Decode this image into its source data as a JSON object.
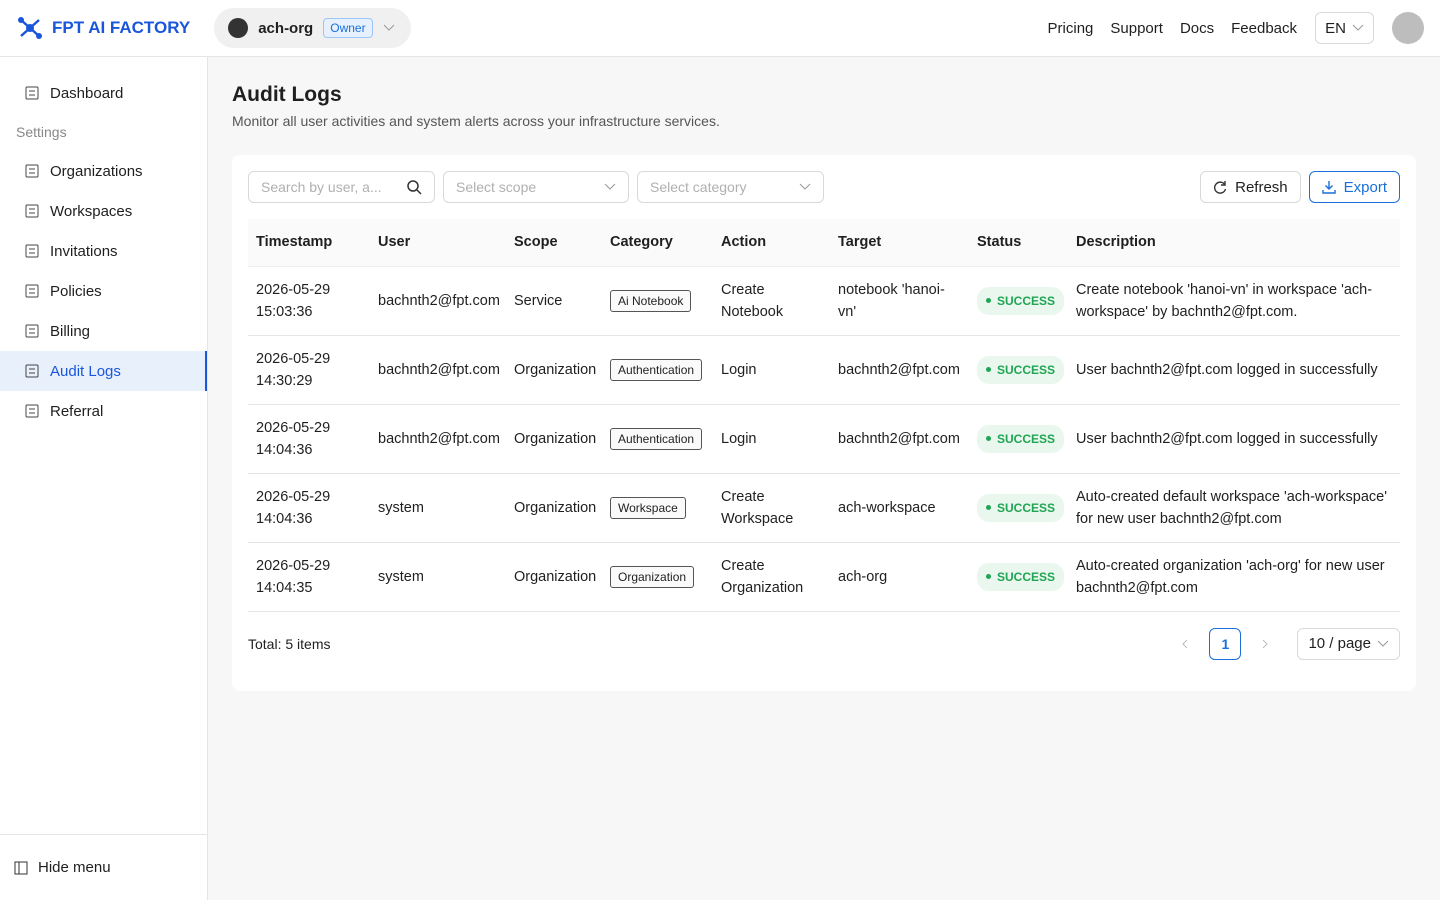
{
  "header": {
    "brand": "FPT AI FACTORY",
    "org": "ach-org",
    "role": "Owner",
    "nav": [
      "Pricing",
      "Support",
      "Docs",
      "Feedback"
    ],
    "language": "EN"
  },
  "sidebar": {
    "top": "Dashboard",
    "section": "Settings",
    "items": [
      "Organizations",
      "Workspaces",
      "Invitations",
      "Policies",
      "Billing",
      "Audit Logs",
      "Referral"
    ],
    "active_index": 5,
    "footer": "Hide menu"
  },
  "main": {
    "title": "Audit Logs",
    "subtitle": "Monitor all user activities and system alerts across your infrastructure services.",
    "filters": {
      "search": "Search by user, a...",
      "scope": "Select scope",
      "category": "Select category"
    },
    "actions": [
      "Refresh",
      "Export"
    ],
    "table": {
      "columns": [
        "Timestamp",
        "User",
        "Scope",
        "Category",
        "Action",
        "Target",
        "Status",
        "Description"
      ],
      "rows": [
        [
          "2026-05-29 15:03:36",
          "bachnth2@fpt.com",
          "Service",
          "Ai Notebook",
          "Create Notebook",
          "notebook 'hanoi-vn'",
          "SUCCESS",
          "Create notebook 'hanoi-vn' in workspace 'ach-workspace' by bachnth2@fpt.com."
        ],
        [
          "2026-05-29 14:30:29",
          "bachnth2@fpt.com",
          "Organization",
          "Authentication",
          "Login",
          "bachnth2@fpt.com",
          "SUCCESS",
          "User bachnth2@fpt.com logged in successfully"
        ],
        [
          "2026-05-29 14:04:36",
          "bachnth2@fpt.com",
          "Organization",
          "Authentication",
          "Login",
          "bachnth2@fpt.com",
          "SUCCESS",
          "User bachnth2@fpt.com logged in successfully"
        ],
        [
          "2026-05-29 14:04:36",
          "system",
          "Organization",
          "Workspace",
          "Create Workspace",
          "ach-workspace",
          "SUCCESS",
          "Auto-created default workspace 'ach-workspace' for new user bachnth2@fpt.com"
        ],
        [
          "2026-05-29 14:04:35",
          "system",
          "Organization",
          "Organization",
          "Create Organization",
          "ach-org",
          "SUCCESS",
          "Auto-created organization 'ach-org' for new user bachnth2@fpt.com"
        ]
      ]
    },
    "pagination": {
      "total": "Total: 5 items",
      "current": "1",
      "page_size": "10 / page"
    }
  }
}
